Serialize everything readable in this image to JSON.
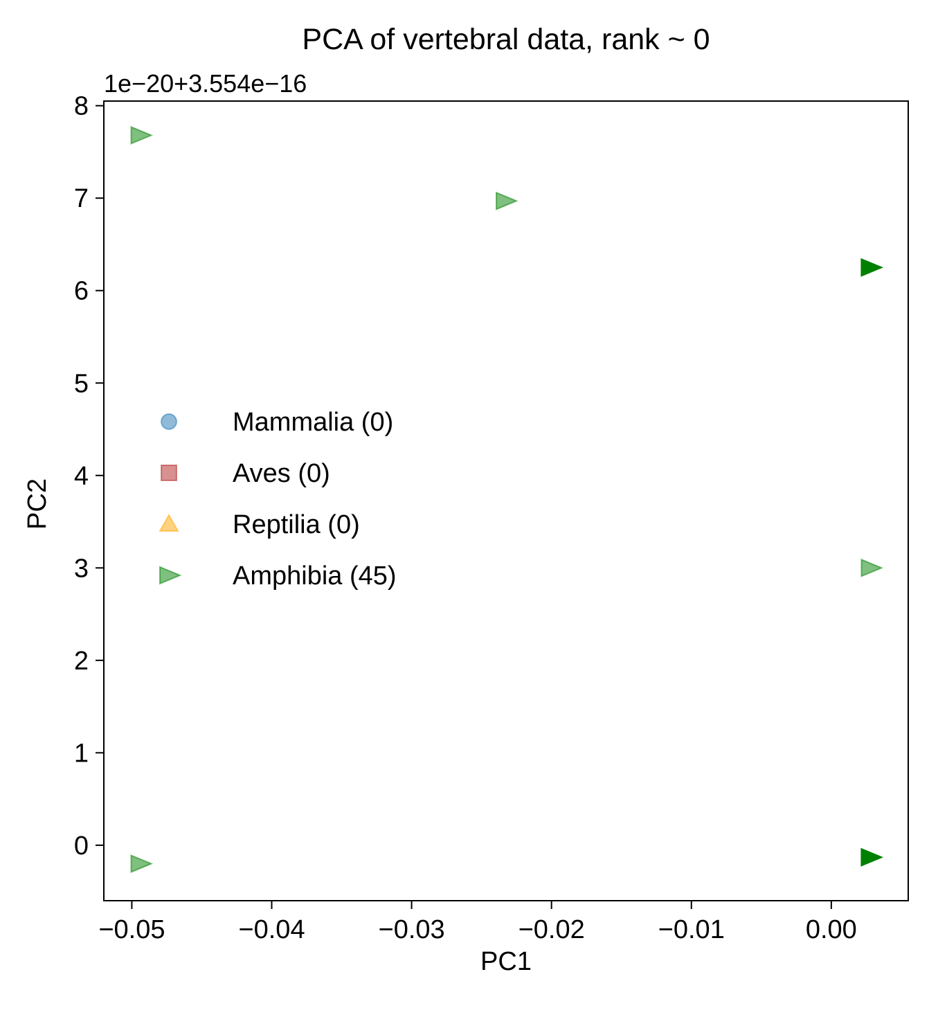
{
  "chart_data": {
    "type": "scatter",
    "title": "PCA of vertebral data, rank ~ 0",
    "xlabel": "PC1",
    "ylabel": "PC2",
    "y_offset_label": "1e−20+3.554e−16",
    "xlim": [
      -0.052,
      0.0055
    ],
    "ylim": [
      -0.6,
      8.05
    ],
    "xticks": [
      -0.05,
      -0.04,
      -0.03,
      -0.02,
      -0.01,
      0.0
    ],
    "xtick_labels": [
      "−0.05",
      "−0.04",
      "−0.03",
      "−0.02",
      "−0.01",
      "0.00"
    ],
    "yticks": [
      0,
      1,
      2,
      3,
      4,
      5,
      6,
      7,
      8
    ],
    "ytick_labels": [
      "0",
      "1",
      "2",
      "3",
      "4",
      "5",
      "6",
      "7",
      "8"
    ],
    "legend": {
      "placement": "center-left",
      "entries": [
        {
          "label": "Mammalia (0)",
          "marker": "circle",
          "color": "#1f77b4"
        },
        {
          "label": "Aves (0)",
          "marker": "square",
          "color": "#b22222"
        },
        {
          "label": "Reptilia (0)",
          "marker": "triangle-up",
          "color": "#ffa500"
        },
        {
          "label": "Amphibia (45)",
          "marker": "triangle-right",
          "color": "#008000"
        }
      ]
    },
    "series": [
      {
        "name": "Mammalia (0)",
        "marker": "circle",
        "color": "#1f77b4",
        "points": []
      },
      {
        "name": "Aves (0)",
        "marker": "square",
        "color": "#b22222",
        "points": []
      },
      {
        "name": "Reptilia (0)",
        "marker": "triangle-up",
        "color": "#ffa500",
        "points": []
      },
      {
        "name": "Amphibia (45)",
        "marker": "triangle-right",
        "color": "#008000",
        "points": [
          {
            "x": -0.0494,
            "y": 7.68,
            "opacity": 0.5
          },
          {
            "x": -0.0233,
            "y": 6.97,
            "opacity": 0.5
          },
          {
            "x": 0.0028,
            "y": 6.25,
            "opacity": 1.0
          },
          {
            "x": 0.0028,
            "y": 3.0,
            "opacity": 0.5
          },
          {
            "x": 0.0028,
            "y": -0.13,
            "opacity": 1.0
          },
          {
            "x": -0.0494,
            "y": -0.2,
            "opacity": 0.5
          }
        ]
      }
    ],
    "grid": false
  }
}
